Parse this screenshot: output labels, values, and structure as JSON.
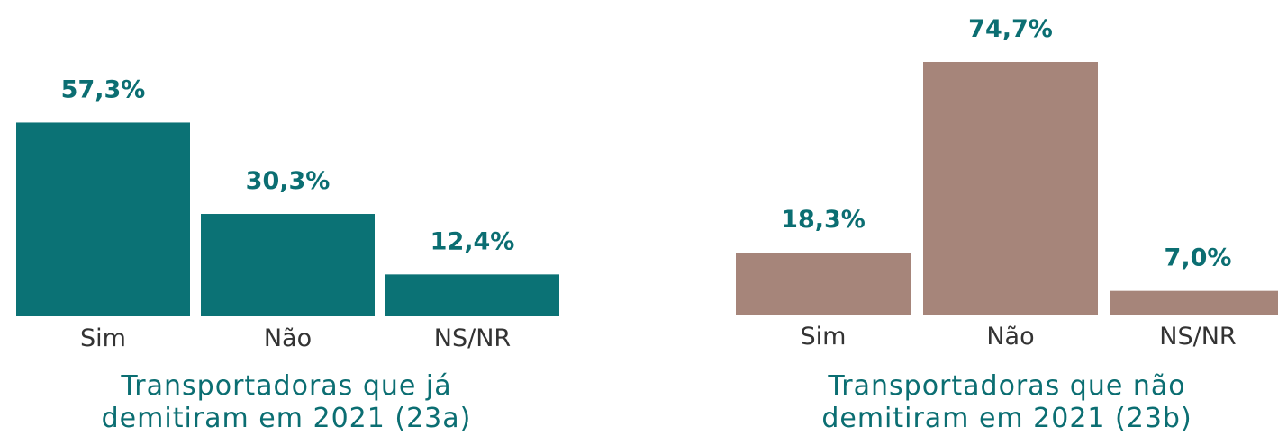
{
  "chart_data": [
    {
      "type": "bar",
      "title": "Transportadoras que já\ndemitiram em 2021 (23a)",
      "categories": [
        "Sim",
        "Não",
        "NS/NR"
      ],
      "values": [
        57.3,
        30.3,
        12.4
      ],
      "value_labels": [
        "57,3%",
        "30,3%",
        "12,4%"
      ],
      "color": "#0b7275"
    },
    {
      "type": "bar",
      "title": "Transportadoras que não\ndemitiram em 2021 (23b)",
      "categories": [
        "Sim",
        "Não",
        "NS/NR"
      ],
      "values": [
        18.3,
        74.7,
        7.0
      ],
      "value_labels": [
        "18,3%",
        "74,7%",
        "7,0%"
      ],
      "color": "#a6857a"
    }
  ]
}
